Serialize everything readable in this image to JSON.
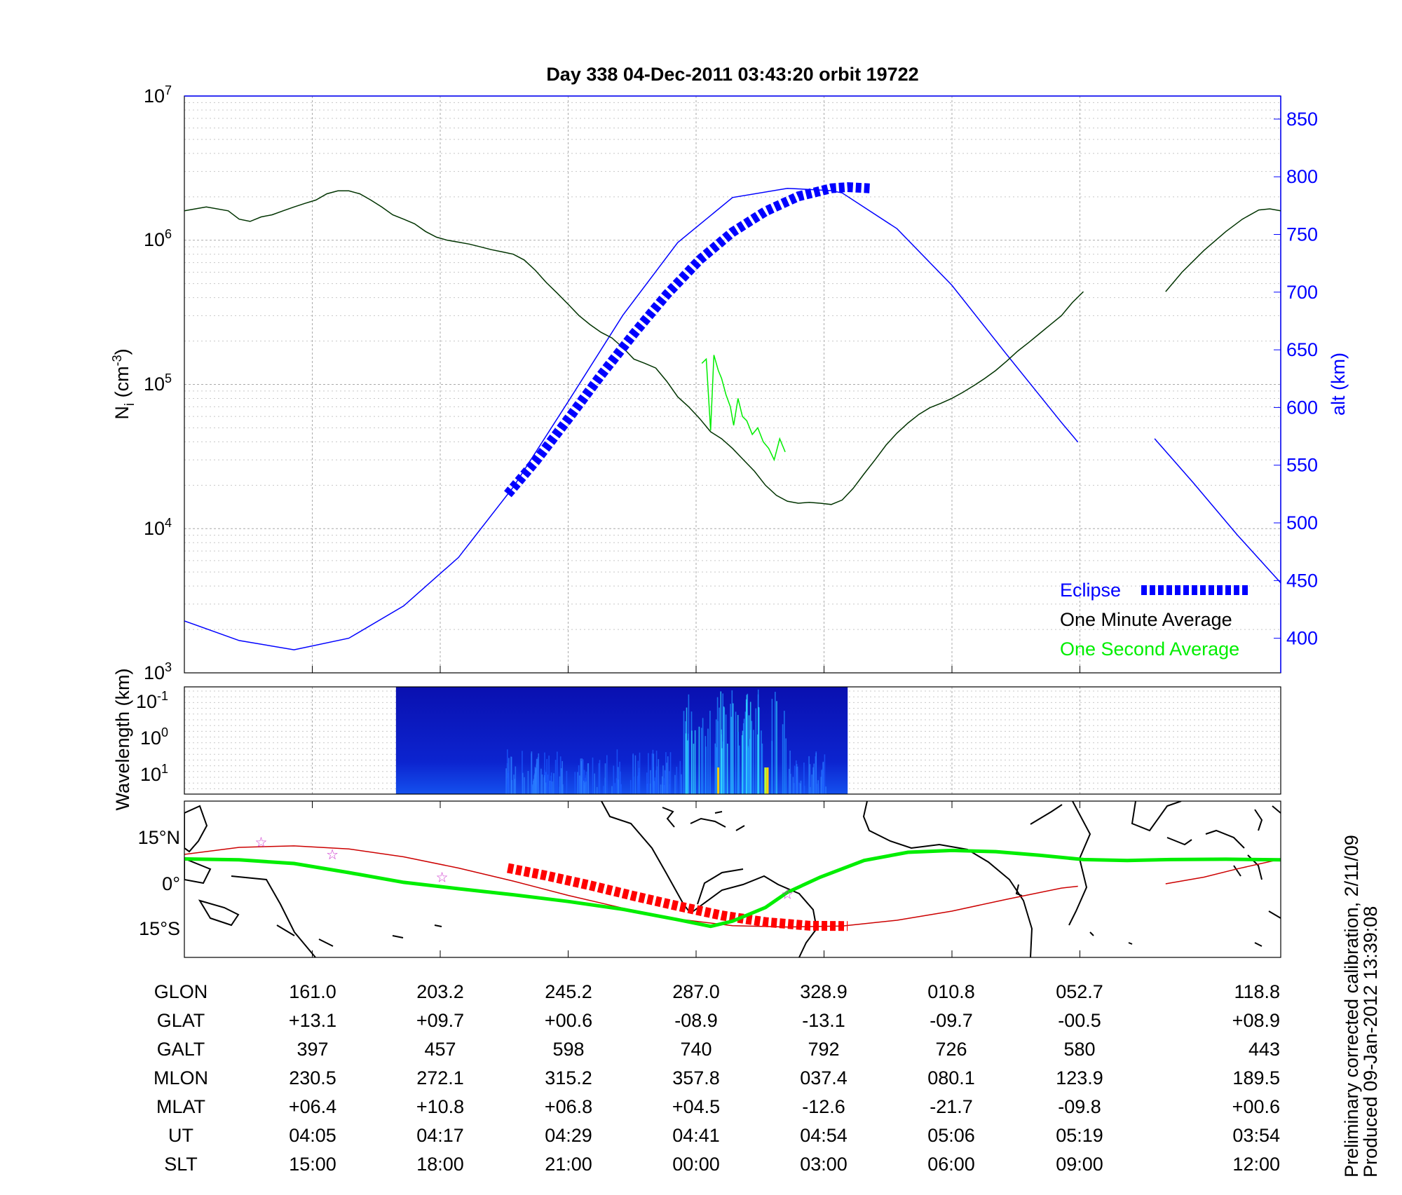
{
  "title": "Day 338  04-Dec-2011 03:43:20   orbit 19722",
  "colors": {
    "altitude": "#0000ff",
    "one_minute": "#003300",
    "one_second": "#00ee00",
    "eclipse": "#0000ff",
    "track_red": "#cc0000",
    "track_eclipse_red": "#ff0000",
    "mag_track": "#00ee00",
    "star": "#cc33cc"
  },
  "chart_data": [
    {
      "type": "line",
      "panel": "density",
      "ylabel_main": "N",
      "ylabel_sub": "i",
      "ylabel_unit": "(cm",
      "ylabel_sup": "-3",
      "ylabel_close": ")",
      "yscale": "log",
      "ylim": [
        1000,
        10000000
      ],
      "ytick_base": [
        "10",
        "10",
        "10",
        "10",
        "10"
      ],
      "ytick_exp": [
        "3",
        "4",
        "5",
        "6",
        "7"
      ],
      "y2label": "alt (km)",
      "y2lim": [
        370,
        870
      ],
      "y2ticks": [
        "400",
        "450",
        "500",
        "550",
        "600",
        "650",
        "700",
        "750",
        "800",
        "850"
      ],
      "xlim": [
        0,
        100
      ],
      "grid": true,
      "legend_position": "bottom-right",
      "legend": [
        "Eclipse",
        "One Minute Average",
        "One Second Average"
      ],
      "series": [
        {
          "name": "One Minute Average",
          "x": [
            0,
            2,
            4,
            5,
            6,
            7,
            8,
            9,
            10,
            11,
            12,
            13,
            14,
            15,
            16,
            17,
            18,
            19,
            20,
            21,
            22,
            23,
            24,
            25,
            26,
            27,
            28,
            29,
            30,
            31,
            32,
            33,
            34,
            35,
            36,
            37,
            38,
            39,
            40,
            41,
            42,
            43,
            44,
            45,
            46,
            47,
            48,
            49,
            50,
            51,
            52,
            53,
            54,
            55,
            56,
            57,
            58,
            59,
            60,
            61,
            62,
            63,
            64,
            65,
            66,
            67,
            68,
            69,
            70,
            71,
            72,
            73,
            74,
            75,
            76,
            77,
            78,
            79,
            80,
            81,
            82
          ],
          "y": [
            1600000,
            1700000,
            1600000,
            1400000,
            1350000,
            1450000,
            1500000,
            1600000,
            1700000,
            1800000,
            1900000,
            2100000,
            2200000,
            2200000,
            2100000,
            1900000,
            1700000,
            1500000,
            1400000,
            1300000,
            1150000,
            1050000,
            1000000,
            970000,
            940000,
            900000,
            860000,
            830000,
            800000,
            730000,
            620000,
            510000,
            430000,
            360000,
            300000,
            260000,
            230000,
            210000,
            180000,
            150000,
            140000,
            130000,
            105000,
            82000,
            70000,
            58000,
            47000,
            42000,
            36000,
            30000,
            25000,
            20000,
            17000,
            15500,
            15000,
            15200,
            15000,
            14700,
            15800,
            19000,
            24000,
            30000,
            38000,
            46000,
            54000,
            62000,
            69000,
            74000,
            80000,
            88000,
            98000,
            110000,
            125000,
            145000,
            170000,
            195000,
            225000,
            260000,
            300000,
            370000,
            440000
          ]
        },
        {
          "name": "One Minute Average",
          "x": [
            89.5,
            91,
            93,
            95,
            96.5,
            98,
            99,
            100
          ],
          "y": [
            440000,
            600000,
            850000,
            1150000,
            1400000,
            1620000,
            1650000,
            1600000
          ]
        },
        {
          "name": "One Second Average",
          "x": [
            47.2,
            47.6,
            48.0,
            48.3,
            48.7,
            49.0,
            49.4,
            49.8,
            50.1,
            50.5,
            50.9,
            51.3,
            51.8,
            52.3,
            52.8,
            53.3,
            53.8,
            54.3,
            54.8
          ],
          "y": [
            140000,
            150000,
            48000,
            160000,
            125000,
            110000,
            85000,
            70000,
            52000,
            80000,
            60000,
            56000,
            45000,
            50000,
            40000,
            36000,
            30000,
            42000,
            34000
          ]
        }
      ],
      "altitude_series": {
        "x": [
          0,
          5,
          10,
          15,
          20,
          25,
          30,
          35,
          40,
          45,
          50,
          55,
          59,
          60,
          65,
          70,
          75,
          80,
          81.5
        ],
        "y": [
          415,
          398,
          390,
          400,
          428,
          470,
          531,
          605,
          680,
          743,
          782,
          790,
          788,
          786,
          755,
          706,
          646,
          587,
          570
        ]
      },
      "altitude_series_2": {
        "x": [
          88.5,
          92,
          96,
          100
        ],
        "y": [
          573,
          535,
          490,
          448
        ]
      },
      "eclipse": {
        "x": [
          29.5,
          32,
          35,
          38,
          41,
          44,
          47,
          50,
          53,
          56,
          59,
          60.5,
          62.5
        ],
        "y": [
          525,
          553,
          590,
          628,
          664,
          698,
          728,
          752,
          770,
          783,
          790,
          791,
          790
        ]
      }
    },
    {
      "type": "heatmap",
      "panel": "wavelength",
      "ylabel": "Wavelength (km)",
      "ytick_base": [
        "10",
        "10",
        "10"
      ],
      "ytick_exp": [
        "-1",
        "0",
        "1"
      ],
      "data_xrange": [
        19.3,
        60.5
      ]
    },
    {
      "type": "line",
      "panel": "map",
      "yticks": [
        "15°N",
        "0°",
        "15°S"
      ],
      "orbit_track": {
        "x": [
          0,
          5,
          10,
          15,
          20,
          25,
          30,
          35,
          40,
          45,
          50,
          55,
          60,
          65,
          70,
          75,
          80,
          81.5
        ],
        "y": [
          10.5,
          12.8,
          13.3,
          12.3,
          9.7,
          6.0,
          1.7,
          -3.0,
          -7.2,
          -10.8,
          -13.0,
          -13.4,
          -13.1,
          -11.2,
          -8.2,
          -4.3,
          -0.6,
          0
        ]
      },
      "orbit_track_2": {
        "x": [
          89.5,
          93,
          96,
          100
        ],
        "y": [
          0.8,
          3.0,
          5.7,
          8.9
        ]
      },
      "eclipse_track": {
        "x": [
          29.5,
          33,
          37,
          41,
          45,
          49,
          53,
          57,
          60.5
        ],
        "y": [
          6.0,
          3.5,
          0.3,
          -3.2,
          -6.5,
          -9.6,
          -11.8,
          -13.0,
          -13.1
        ]
      },
      "mag_track": {
        "x": [
          0,
          5,
          10,
          15,
          20,
          25,
          30,
          35,
          40,
          45,
          48,
          50,
          53,
          55,
          58,
          62,
          66,
          70,
          74,
          78,
          82,
          86,
          90,
          95,
          100
        ],
        "y": [
          9.0,
          8.7,
          7.5,
          4.5,
          1.3,
          -0.8,
          -2.8,
          -5.0,
          -7.6,
          -11.0,
          -13.2,
          -11.5,
          -7.0,
          -2.0,
          3.0,
          8.5,
          11.2,
          11.8,
          11.4,
          10.2,
          8.8,
          8.5,
          8.8,
          8.9,
          8.7
        ]
      },
      "stars": {
        "x": [
          7,
          13.5,
          23.5,
          55
        ],
        "y": [
          14.5,
          10.5,
          3.0,
          -2.5
        ]
      }
    }
  ],
  "table": {
    "row_labels": [
      "GLON",
      "GLAT",
      "GALT",
      "MLON",
      "MLAT",
      "UT",
      "SLT"
    ],
    "columns": [
      [
        "161.0",
        "+13.1",
        "397",
        "230.5",
        "+06.4",
        "04:05",
        "15:00"
      ],
      [
        "203.2",
        "+09.7",
        "457",
        "272.1",
        "+10.8",
        "04:17",
        "18:00"
      ],
      [
        "245.2",
        "+00.6",
        "598",
        "315.2",
        "+06.8",
        "04:29",
        "21:00"
      ],
      [
        "287.0",
        "-08.9",
        "740",
        "357.8",
        "+04.5",
        "04:41",
        "00:00"
      ],
      [
        "328.9",
        "-13.1",
        "792",
        "037.4",
        "-12.6",
        "04:54",
        "03:00"
      ],
      [
        "010.8",
        "-09.7",
        "726",
        "080.1",
        "-21.7",
        "05:06",
        "06:00"
      ],
      [
        "052.7",
        "-00.5",
        "580",
        "123.9",
        "-09.8",
        "05:19",
        "09:00"
      ],
      [
        "118.8",
        "+08.9",
        "443",
        "189.5",
        "+00.6",
        "03:54",
        "12:00"
      ]
    ]
  },
  "side_note": {
    "line1": "Preliminary corrected calibration, 2/11/09",
    "line2": "Produced 09-Jan-2012 13:39:08"
  }
}
